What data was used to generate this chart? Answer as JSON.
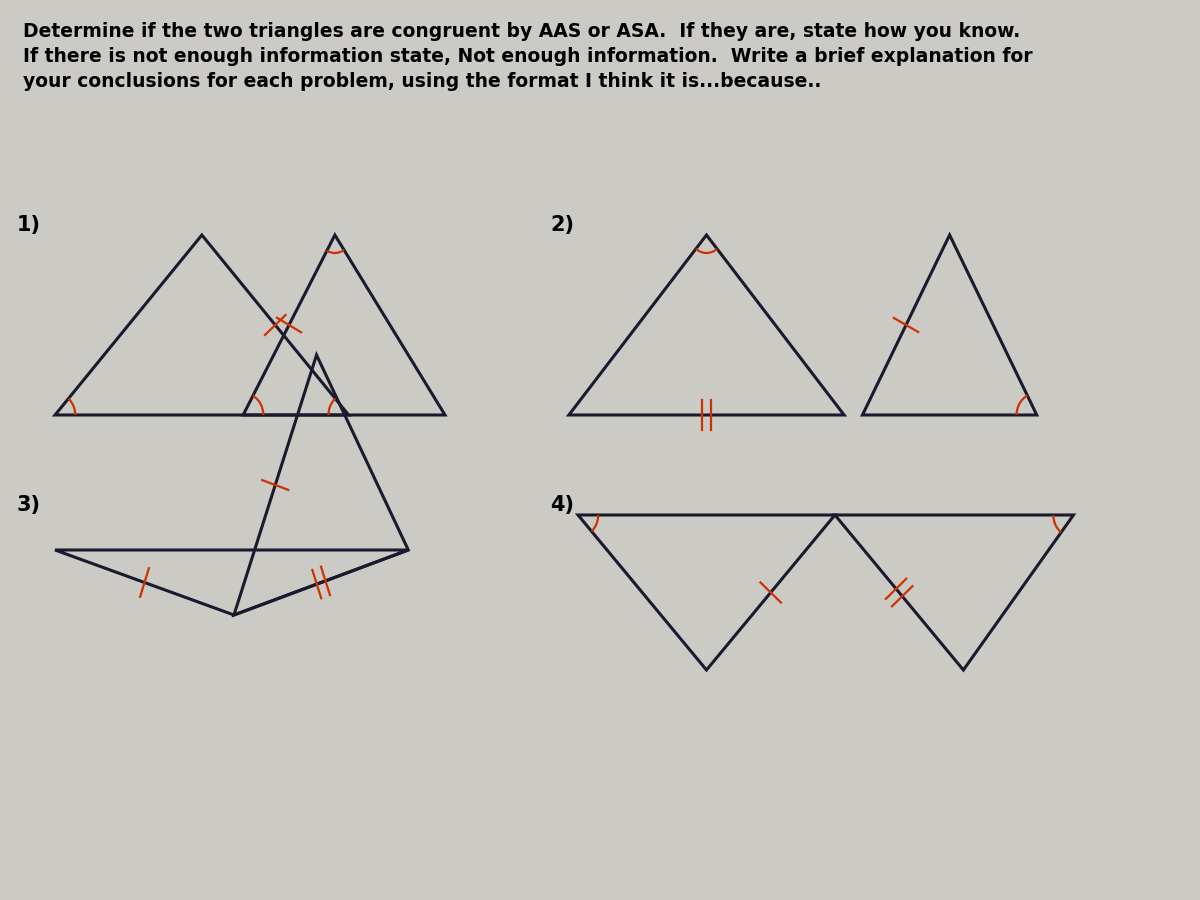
{
  "bg_color": "#cccac4",
  "title_text": "Determine if the two triangles are congruent by AAS or ASA.  If they are, state how you know.\nIf there is not enough information state, Not enough information.  Write a brief explanation for\nyour conclusions for each problem, using the format I think it is...because..",
  "title_fontsize": 13.5,
  "mark_color": "#cc3300",
  "line_color": "#1a1a2e",
  "label_fontsize": 15
}
